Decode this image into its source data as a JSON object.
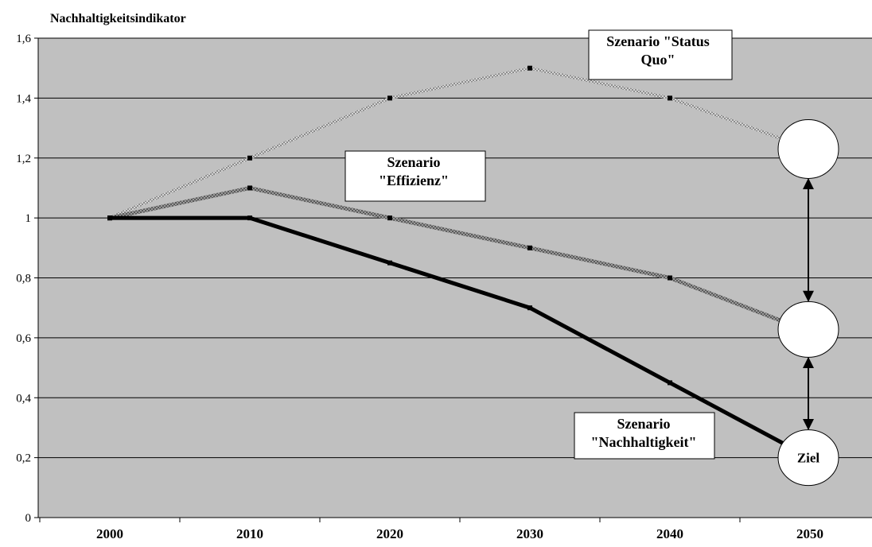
{
  "chart_data": {
    "type": "line",
    "title": "Nachhaltigkeitsindikator",
    "x": [
      "2000",
      "2010",
      "2020",
      "2030",
      "2040",
      "2050"
    ],
    "ylim": [
      0,
      1.6
    ],
    "yticks": [
      "0",
      "0,2",
      "0,4",
      "0,6",
      "0,8",
      "1",
      "1,2",
      "1,4",
      "1,6"
    ],
    "grid": true,
    "background_color": "#c0c0c0",
    "series": [
      {
        "key": "status-quo",
        "values": [
          1.0,
          1.2,
          1.4,
          1.5,
          1.4,
          1.23
        ],
        "color": "#a8a8a8",
        "style": "dotted-light"
      },
      {
        "key": "effizienz",
        "values": [
          1.0,
          1.1,
          1.0,
          0.9,
          0.8,
          0.62
        ],
        "color": "#808080",
        "style": "hatched"
      },
      {
        "key": "nachhaltigkeit",
        "values": [
          1.0,
          1.0,
          0.85,
          0.7,
          0.45,
          0.2
        ],
        "color": "#000000",
        "style": "thick"
      }
    ],
    "annotations": [
      {
        "key": "status-quo",
        "lines": [
          "Szenario \"Status",
          "Quo\""
        ]
      },
      {
        "key": "effizienz",
        "lines": [
          "Szenario",
          "\"Effizienz\""
        ]
      },
      {
        "key": "nachhaltigkeit",
        "lines": [
          "Szenario",
          "\"Nachhaltigkeit\""
        ]
      }
    ],
    "target_label": "Ziel",
    "markers_on_x_index": [
      0,
      1,
      2,
      3,
      4
    ]
  }
}
